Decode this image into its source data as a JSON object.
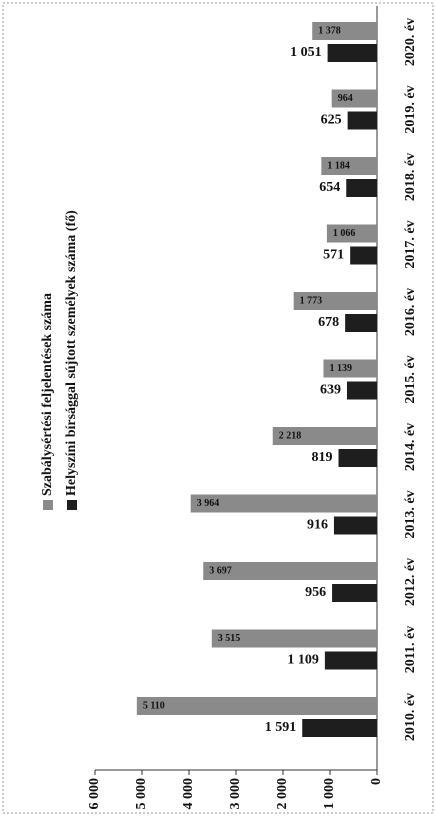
{
  "chart_data": {
    "type": "bar",
    "categories": [
      "2010. év",
      "2011. év",
      "2012. év",
      "2013. év",
      "2014. év",
      "2015. év",
      "2016. év",
      "2017. év",
      "2018. év",
      "2019. év",
      "2020. év"
    ],
    "series": [
      {
        "name": "Szabálysértési feljelentések száma",
        "color": "#8a8a8a",
        "values": [
          5110,
          3515,
          3697,
          3964,
          2218,
          1139,
          1773,
          1066,
          1184,
          964,
          1378
        ],
        "value_labels": [
          "5 110",
          "3 515",
          "3 697",
          "3 964",
          "2 218",
          "1 139",
          "1 773",
          "1 066",
          "1 184",
          "964",
          "1 378"
        ]
      },
      {
        "name": "Helyszíni bírsággal sújtott személyek száma (fő)",
        "color": "#1e1e1e",
        "values": [
          1591,
          1109,
          956,
          916,
          819,
          639,
          678,
          571,
          654,
          625,
          1051
        ],
        "value_labels": [
          "1 591",
          "1 109",
          "956",
          "916",
          "819",
          "639",
          "678",
          "571",
          "654",
          "625",
          "1 051"
        ]
      }
    ],
    "ylim": [
      0,
      6000
    ],
    "yticks": [
      0,
      {
        "value": 1000,
        "label": "1 000"
      },
      {
        "value": 2000,
        "label": "2 000"
      },
      {
        "value": 3000,
        "label": "3 000"
      },
      {
        "value": 4000,
        "label": "4 000"
      },
      {
        "value": 5000,
        "label": "5 000"
      },
      {
        "value": 6000,
        "label": "6 000"
      }
    ],
    "legend": "top"
  }
}
